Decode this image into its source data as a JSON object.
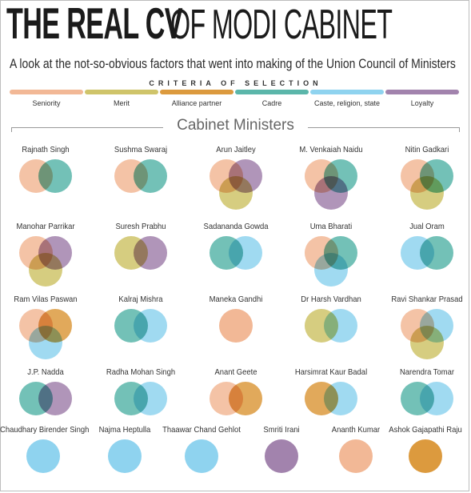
{
  "header": {
    "title_bold": "THE REAL CV",
    "title_light": "OF MODI CABINET",
    "subtitle": "A look at the not-so-obvious factors that went into making of the Union Council of Ministers"
  },
  "criteria": {
    "heading": "CRITERIA OF SELECTION",
    "items": [
      {
        "key": "seniority",
        "label": "Seniority",
        "color": "#f2b896"
      },
      {
        "key": "merit",
        "label": "Merit",
        "color": "#cfc46a"
      },
      {
        "key": "alliance",
        "label": "Alliance partner",
        "color": "#dc9a3e"
      },
      {
        "key": "cadre",
        "label": "Cadre",
        "color": "#5bb6aa"
      },
      {
        "key": "caste",
        "label": "Caste, religion, state",
        "color": "#8fd3ef"
      },
      {
        "key": "loyalty",
        "label": "Loyalty",
        "color": "#a283ad"
      }
    ]
  },
  "section_title": "Cabinet Ministers",
  "ministers": [
    {
      "name": "Rajnath Singh",
      "criteria": [
        "seniority",
        "cadre"
      ]
    },
    {
      "name": "Sushma Swaraj",
      "criteria": [
        "seniority",
        "cadre"
      ]
    },
    {
      "name": "Arun Jaitley",
      "criteria": [
        "seniority",
        "loyalty",
        "merit"
      ]
    },
    {
      "name": "M. Venkaiah Naidu",
      "criteria": [
        "seniority",
        "cadre",
        "loyalty"
      ]
    },
    {
      "name": "Nitin Gadkari",
      "criteria": [
        "seniority",
        "cadre",
        "merit"
      ]
    },
    {
      "name": "Manohar Parrikar",
      "criteria": [
        "seniority",
        "loyalty",
        "merit"
      ]
    },
    {
      "name": "Suresh Prabhu",
      "criteria": [
        "merit",
        "loyalty"
      ]
    },
    {
      "name": "Sadananda Gowda",
      "criteria": [
        "cadre",
        "caste"
      ]
    },
    {
      "name": "Uma Bharati",
      "criteria": [
        "seniority",
        "cadre",
        "caste"
      ]
    },
    {
      "name": "Jual Oram",
      "criteria": [
        "caste",
        "cadre"
      ]
    },
    {
      "name": "Ram Vilas Paswan",
      "criteria": [
        "seniority",
        "alliance",
        "caste"
      ]
    },
    {
      "name": "Kalraj Mishra",
      "criteria": [
        "cadre",
        "caste"
      ]
    },
    {
      "name": "Maneka Gandhi",
      "criteria": [
        "seniority"
      ]
    },
    {
      "name": "Dr Harsh Vardhan",
      "criteria": [
        "merit",
        "caste"
      ]
    },
    {
      "name": "Ravi Shankar Prasad",
      "criteria": [
        "seniority",
        "caste",
        "merit"
      ]
    },
    {
      "name": "J.P. Nadda",
      "criteria": [
        "cadre",
        "loyalty"
      ]
    },
    {
      "name": "Radha Mohan Singh",
      "criteria": [
        "cadre",
        "caste"
      ]
    },
    {
      "name": "Anant Geete",
      "criteria": [
        "seniority",
        "alliance"
      ]
    },
    {
      "name": "Harsimrat Kaur Badal",
      "criteria": [
        "alliance",
        "caste"
      ]
    },
    {
      "name": "Narendra Tomar",
      "criteria": [
        "cadre",
        "caste"
      ]
    },
    {
      "name": "Chaudhary Birender Singh",
      "criteria": [
        "caste"
      ]
    },
    {
      "name": "Najma Heptulla",
      "criteria": [
        "caste"
      ]
    },
    {
      "name": "Thaawar Chand Gehlot",
      "criteria": [
        "caste"
      ]
    },
    {
      "name": "Smriti Irani",
      "criteria": [
        "loyalty"
      ]
    },
    {
      "name": "Ananth Kumar",
      "criteria": [
        "seniority"
      ]
    },
    {
      "name": "Ashok Gajapathi Raju",
      "criteria": [
        "alliance"
      ]
    }
  ]
}
